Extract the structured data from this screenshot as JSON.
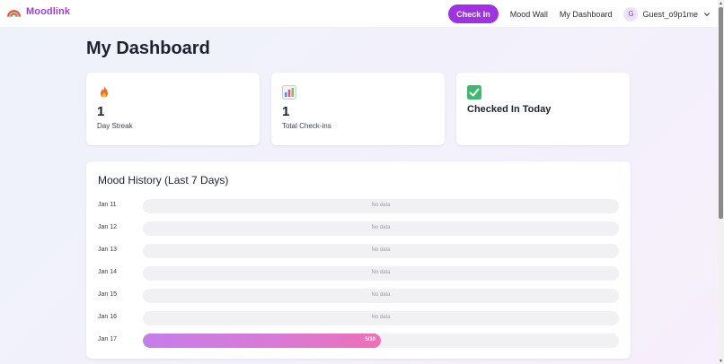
{
  "brand": {
    "name": "Moodlink",
    "logo_icon": "rainbow-icon"
  },
  "nav": {
    "check_in": "Check In",
    "mood_wall": "Mood Wall",
    "my_dashboard": "My Dashboard",
    "user": {
      "avatar_initial": "G",
      "name": "Guest_o9p1me"
    }
  },
  "colors": {
    "brand": "#9d3fd8",
    "primary_button": "#9f33e4",
    "bar_gradient_start": "#c57ee8",
    "bar_gradient_end": "#ee6fb6"
  },
  "page": {
    "title": "My Dashboard"
  },
  "stats": [
    {
      "icon": "fire-icon",
      "value": "1",
      "label": "Day Streak"
    },
    {
      "icon": "bar-chart-icon",
      "value": "1",
      "label": "Total Check-ins"
    },
    {
      "icon": "check-box-icon",
      "label": "Checked In Today"
    }
  ],
  "history": {
    "title": "Mood History (Last 7 Days)",
    "max_score": 10,
    "rows": [
      {
        "date": "Jan 11",
        "label": "No data"
      },
      {
        "date": "Jan 12",
        "label": "No data"
      },
      {
        "date": "Jan 13",
        "label": "No data"
      },
      {
        "date": "Jan 14",
        "label": "No data"
      },
      {
        "date": "Jan 15",
        "label": "No data"
      },
      {
        "date": "Jan 16",
        "label": "No data"
      },
      {
        "date": "Jan 17",
        "score": 5,
        "label": "5/10"
      }
    ]
  }
}
